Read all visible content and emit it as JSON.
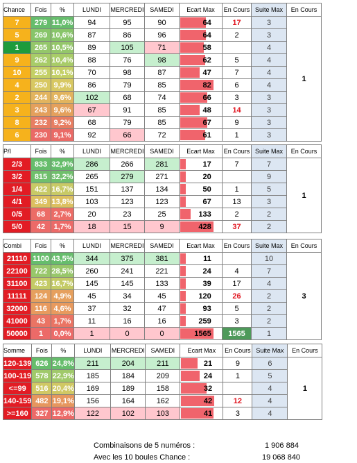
{
  "headers": {
    "fois": "Fois",
    "pct": "%",
    "lundi": "LUNDI",
    "mercredi": "MERCREDI",
    "samedi": "SAMEDI",
    "ecart": "Ecart Max",
    "encours": "En Cours",
    "suite": "Suite Max",
    "encours2": "En Cours"
  },
  "tables": [
    {
      "title": "Chance",
      "right_value": "1",
      "rows": [
        {
          "key": "7",
          "fois": "279",
          "pct": "11,0%",
          "lundi": "94",
          "mercredi": "95",
          "samedi": "90",
          "ecart": "64",
          "encours": "17",
          "encours_red": true,
          "suite": "3",
          "key_color": "#f6b21c",
          "fois_color": "#66bd6c",
          "pct_color": "#66bd6c",
          "hl": {}
        },
        {
          "key": "5",
          "fois": "269",
          "pct": "10,6%",
          "lundi": "87",
          "mercredi": "86",
          "samedi": "96",
          "ecart": "64",
          "encours": "2",
          "suite": "3",
          "key_color": "#f6b21c",
          "fois_color": "#88c56a",
          "pct_color": "#88c56a",
          "hl": {}
        },
        {
          "key": "1",
          "fois": "265",
          "pct": "10,5%",
          "lundi": "89",
          "mercredi": "105",
          "samedi": "71",
          "ecart": "58",
          "encours": "",
          "suite": "4",
          "key_color": "#1e9b3c",
          "fois_color": "#94c76a",
          "pct_color": "#94c76a",
          "hl": {
            "mercredi": "g",
            "samedi": "pk"
          }
        },
        {
          "key": "9",
          "fois": "262",
          "pct": "10,4%",
          "lundi": "88",
          "mercredi": "76",
          "samedi": "98",
          "ecart": "62",
          "encours": "5",
          "suite": "4",
          "key_color": "#f6b21c",
          "fois_color": "#a8cc68",
          "pct_color": "#a8cc68",
          "hl": {
            "samedi": "g"
          }
        },
        {
          "key": "10",
          "fois": "255",
          "pct": "10,1%",
          "lundi": "70",
          "mercredi": "98",
          "samedi": "87",
          "ecart": "47",
          "encours": "7",
          "suite": "4",
          "key_color": "#f6b21c",
          "fois_color": "#c4d066",
          "pct_color": "#c4d066",
          "hl": {}
        },
        {
          "key": "4",
          "fois": "250",
          "pct": "9,9%",
          "lundi": "86",
          "mercredi": "79",
          "samedi": "85",
          "ecart": "82",
          "encours": "6",
          "suite": "4",
          "key_color": "#f6b21c",
          "fois_color": "#d8c862",
          "pct_color": "#d8c862",
          "hl": {}
        },
        {
          "key": "2",
          "fois": "244",
          "pct": "9,6%",
          "lundi": "102",
          "mercredi": "68",
          "samedi": "74",
          "ecart": "66",
          "encours": "3",
          "suite": "3",
          "key_color": "#f6b21c",
          "fois_color": "#e2b45e",
          "pct_color": "#e2b45e",
          "hl": {
            "lundi": "g"
          }
        },
        {
          "key": "3",
          "fois": "243",
          "pct": "9,6%",
          "lundi": "67",
          "mercredi": "91",
          "samedi": "85",
          "ecart": "48",
          "encours": "14",
          "encours_red": true,
          "suite": "3",
          "key_color": "#f6b21c",
          "fois_color": "#e4a05c",
          "pct_color": "#e4a05c",
          "hl": {
            "lundi": "pk"
          }
        },
        {
          "key": "8",
          "fois": "232",
          "pct": "9,2%",
          "lundi": "68",
          "mercredi": "79",
          "samedi": "85",
          "ecart": "67",
          "encours": "9",
          "suite": "3",
          "key_color": "#f6b21c",
          "fois_color": "#e87e62",
          "pct_color": "#e87e62",
          "hl": {}
        },
        {
          "key": "6",
          "fois": "230",
          "pct": "9,1%",
          "lundi": "92",
          "mercredi": "66",
          "samedi": "72",
          "ecart": "61",
          "encours": "1",
          "suite": "3",
          "key_color": "#f6b21c",
          "fois_color": "#ea6a66",
          "pct_color": "#ea6a66",
          "hl": {
            "mercredi": "pk"
          }
        }
      ]
    },
    {
      "title": "P/I",
      "right_value": "1",
      "rows": [
        {
          "key": "2/3",
          "fois": "833",
          "pct": "32,9%",
          "lundi": "286",
          "mercredi": "266",
          "samedi": "281",
          "ecart": "17",
          "encours": "7",
          "suite": "7",
          "key_color": "#e21c24",
          "fois_color": "#66bd6c",
          "pct_color": "#66bd6c",
          "hl": {
            "lundi": "g",
            "samedi": "g"
          }
        },
        {
          "key": "3/2",
          "fois": "815",
          "pct": "32,2%",
          "lundi": "265",
          "mercredi": "279",
          "samedi": "271",
          "ecart": "20",
          "encours": "",
          "suite": "9",
          "key_color": "#e21c24",
          "fois_color": "#70bf6c",
          "pct_color": "#70bf6c",
          "hl": {
            "mercredi": "g"
          }
        },
        {
          "key": "1/4",
          "fois": "422",
          "pct": "16,7%",
          "lundi": "151",
          "mercredi": "137",
          "samedi": "134",
          "ecart": "50",
          "encours": "1",
          "suite": "5",
          "key_color": "#e21c24",
          "fois_color": "#c8ca66",
          "pct_color": "#c8ca66",
          "hl": {}
        },
        {
          "key": "4/1",
          "fois": "349",
          "pct": "13,8%",
          "lundi": "103",
          "mercredi": "123",
          "samedi": "123",
          "ecart": "67",
          "encours": "13",
          "suite": "3",
          "key_color": "#e21c24",
          "fois_color": "#dcc060",
          "pct_color": "#dcc060",
          "hl": {}
        },
        {
          "key": "0/5",
          "fois": "68",
          "pct": "2,7%",
          "lundi": "20",
          "mercredi": "23",
          "samedi": "25",
          "ecart": "133",
          "encours": "2",
          "suite": "2",
          "key_color": "#e21c24",
          "fois_color": "#ec6c66",
          "pct_color": "#ec6c66",
          "hl": {}
        },
        {
          "key": "5/0",
          "fois": "42",
          "pct": "1,7%",
          "lundi": "18",
          "mercredi": "15",
          "samedi": "9",
          "ecart": "428",
          "encours": "37",
          "encours_red": true,
          "suite": "2",
          "key_color": "#e21c24",
          "fois_color": "#ec6a68",
          "pct_color": "#ec6a68",
          "hl": {
            "lundi": "pk",
            "mercredi": "pk",
            "samedi": "pk"
          }
        }
      ]
    },
    {
      "title": "Combi",
      "right_value": "3",
      "rows": [
        {
          "key": "21110",
          "fois": "1100",
          "pct": "43,5%",
          "lundi": "344",
          "mercredi": "375",
          "samedi": "381",
          "ecart": "11",
          "encours": "",
          "suite": "10",
          "key_color": "#e21c24",
          "fois_color": "#66bd6c",
          "pct_color": "#66bd6c",
          "hl": {
            "lundi": "g",
            "mercredi": "g",
            "samedi": "g"
          }
        },
        {
          "key": "22100",
          "fois": "722",
          "pct": "28,5%",
          "lundi": "260",
          "mercredi": "241",
          "samedi": "221",
          "ecart": "24",
          "encours": "4",
          "suite": "7",
          "key_color": "#e21c24",
          "fois_color": "#98c76a",
          "pct_color": "#98c76a",
          "hl": {}
        },
        {
          "key": "31100",
          "fois": "423",
          "pct": "16,7%",
          "lundi": "145",
          "mercredi": "145",
          "samedi": "133",
          "ecart": "39",
          "encours": "17",
          "suite": "4",
          "key_color": "#e21c24",
          "fois_color": "#c4cb66",
          "pct_color": "#c4cb66",
          "hl": {}
        },
        {
          "key": "11111",
          "fois": "124",
          "pct": "4,9%",
          "lundi": "45",
          "mercredi": "34",
          "samedi": "45",
          "ecart": "120",
          "encours": "26",
          "encours_red": true,
          "suite": "2",
          "key_color": "#e21c24",
          "fois_color": "#e6a05e",
          "pct_color": "#e6a05e",
          "hl": {}
        },
        {
          "key": "32000",
          "fois": "116",
          "pct": "4,6%",
          "lundi": "37",
          "mercredi": "32",
          "samedi": "47",
          "ecart": "93",
          "encours": "5",
          "suite": "2",
          "key_color": "#e21c24",
          "fois_color": "#e89a5e",
          "pct_color": "#e89a5e",
          "hl": {}
        },
        {
          "key": "41000",
          "fois": "43",
          "pct": "1,7%",
          "lundi": "11",
          "mercredi": "16",
          "samedi": "16",
          "ecart": "259",
          "encours": "3",
          "suite": "2",
          "key_color": "#e21c24",
          "fois_color": "#ea7464",
          "pct_color": "#ea7464",
          "hl": {}
        },
        {
          "key": "50000",
          "fois": "1",
          "pct": "0,0%",
          "lundi": "1",
          "mercredi": "0",
          "samedi": "0",
          "ecart": "1565",
          "encours": "1565",
          "encours_darkgreen": true,
          "suite": "1",
          "key_color": "#e21c24",
          "fois_color": "#ec6a68",
          "pct_color": "#ec6a68",
          "hl": {
            "lundi": "pk",
            "mercredi": "pk",
            "samedi": "pk"
          }
        }
      ]
    },
    {
      "title": "Somme",
      "right_value": "1",
      "rows": [
        {
          "key": "120-139",
          "fois": "626",
          "pct": "24,8%",
          "lundi": "211",
          "mercredi": "204",
          "samedi": "211",
          "ecart": "21",
          "encours": "9",
          "suite": "6",
          "key_color": "#e21c24",
          "fois_color": "#66bd6c",
          "pct_color": "#66bd6c",
          "hl": {
            "lundi": "g",
            "mercredi": "g",
            "samedi": "g"
          }
        },
        {
          "key": "100-119",
          "fois": "578",
          "pct": "22,9%",
          "lundi": "185",
          "mercredi": "184",
          "samedi": "209",
          "ecart": "24",
          "encours": "1",
          "suite": "5",
          "key_color": "#e21c24",
          "fois_color": "#a0c96a",
          "pct_color": "#a0c96a",
          "hl": {}
        },
        {
          "key": "<=99",
          "fois": "516",
          "pct": "20,4%",
          "lundi": "169",
          "mercredi": "189",
          "samedi": "158",
          "ecart": "32",
          "encours": "",
          "suite": "4",
          "key_color": "#e21c24",
          "fois_color": "#d0c864",
          "pct_color": "#d0c864",
          "hl": {}
        },
        {
          "key": "140-159",
          "fois": "482",
          "pct": "19,1%",
          "lundi": "156",
          "mercredi": "164",
          "samedi": "162",
          "ecart": "42",
          "encours": "12",
          "encours_red": true,
          "suite": "4",
          "key_color": "#e21c24",
          "fois_color": "#e6965e",
          "pct_color": "#e6965e",
          "hl": {}
        },
        {
          "key": ">=160",
          "fois": "327",
          "pct": "12,9%",
          "lundi": "122",
          "mercredi": "102",
          "samedi": "103",
          "ecart": "41",
          "encours": "3",
          "suite": "4",
          "key_color": "#e21c24",
          "fois_color": "#ec6a68",
          "pct_color": "#ec6a68",
          "hl": {
            "lundi": "pk",
            "mercredi": "pk",
            "samedi": "pk"
          }
        }
      ]
    }
  ],
  "footer": {
    "line1_label": "Combinaisons de 5 numéros :",
    "line1_value": "1 906 884",
    "line2_label": "Avec les 10 boules Chance :",
    "line2_value": "19 068 840"
  }
}
